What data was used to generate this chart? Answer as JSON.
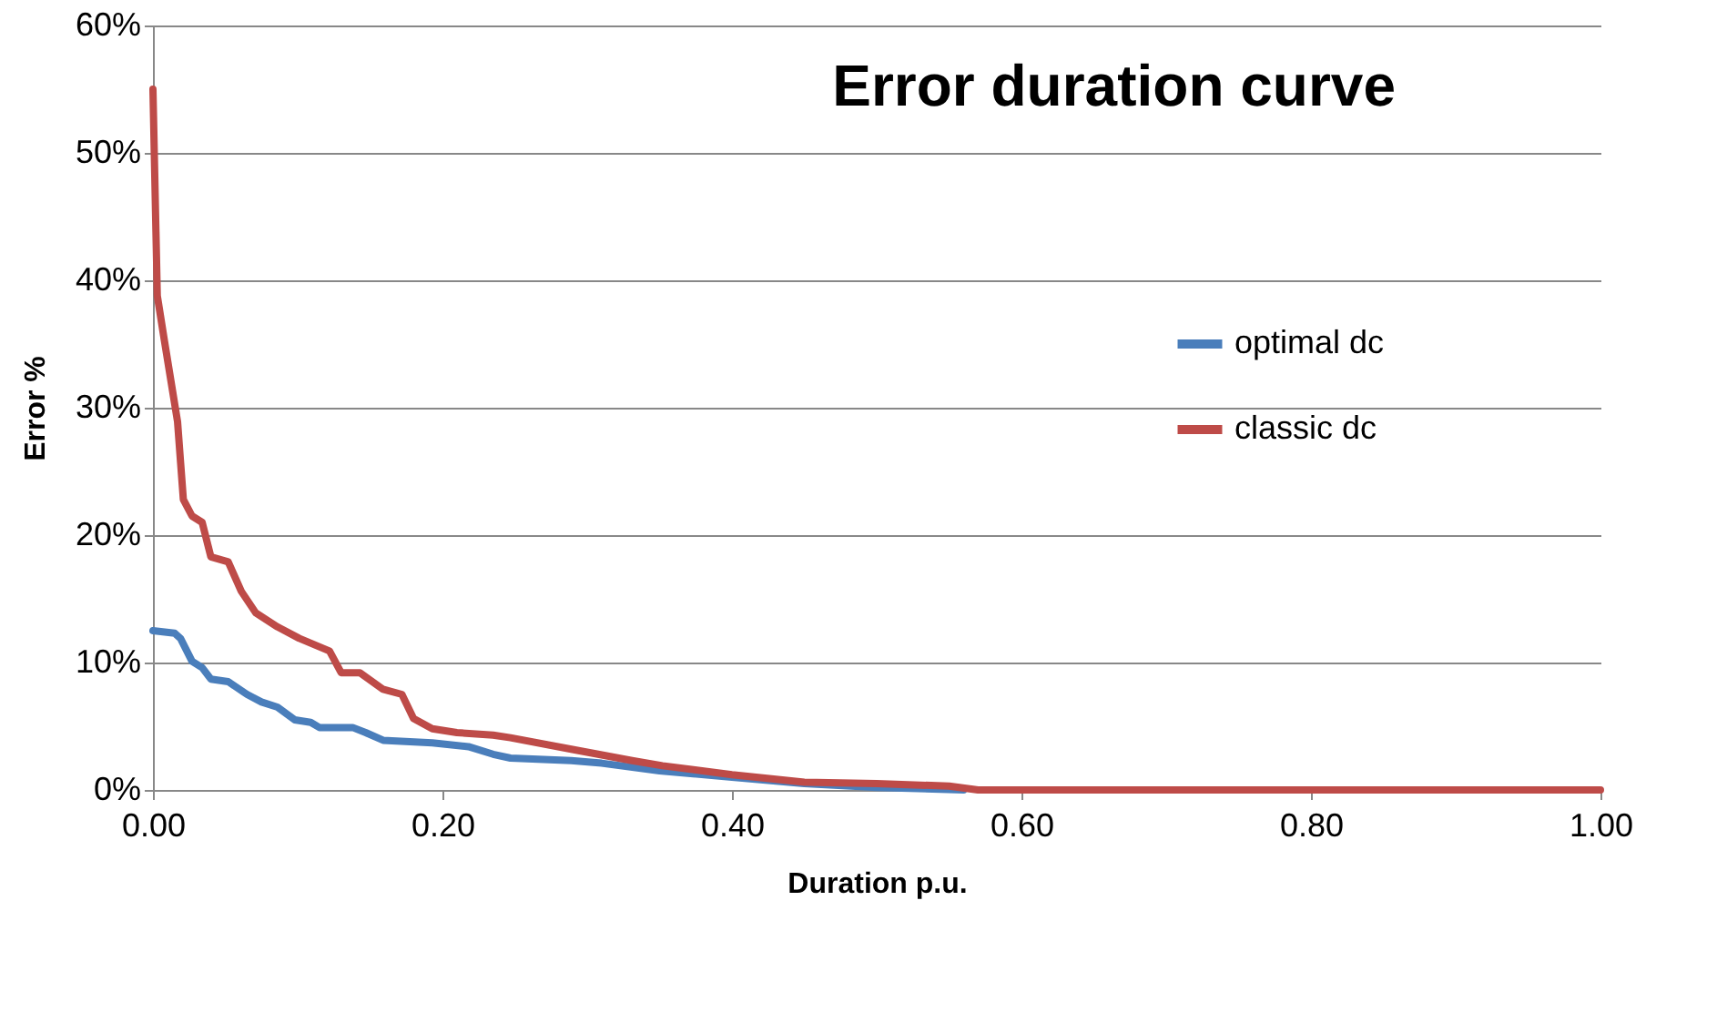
{
  "chart_data": {
    "type": "line",
    "title": "Error duration curve",
    "xlabel": "Duration p.u.",
    "ylabel": "Error %",
    "xlim": [
      0,
      1
    ],
    "xticks": [
      {
        "value": 0,
        "label": "0.00"
      },
      {
        "value": 0.2,
        "label": "0.20"
      },
      {
        "value": 0.4,
        "label": "0.40"
      },
      {
        "value": 0.6,
        "label": "0.60"
      },
      {
        "value": 0.8,
        "label": "0.80"
      },
      {
        "value": 1,
        "label": "1.00"
      }
    ],
    "ylim": [
      0,
      60
    ],
    "yticks": [
      {
        "value": 0,
        "label": "0%"
      },
      {
        "value": 10,
        "label": "10%"
      },
      {
        "value": 20,
        "label": "20%"
      },
      {
        "value": 30,
        "label": "30%"
      },
      {
        "value": 40,
        "label": "40%"
      },
      {
        "value": 50,
        "label": "50%"
      },
      {
        "value": 60,
        "label": "60%"
      }
    ],
    "grid": "y",
    "legend": "right",
    "line_style": "solid",
    "marker": "none",
    "series": [
      {
        "name": "optimal dc",
        "color": "#4a7ebb",
        "x": [
          0,
          0.015,
          0.019,
          0.027,
          0.034,
          0.04,
          0.052,
          0.065,
          0.075,
          0.086,
          0.098,
          0.109,
          0.115,
          0.138,
          0.147,
          0.159,
          0.193,
          0.218,
          0.235,
          0.247,
          0.289,
          0.31,
          0.35,
          0.4,
          0.45,
          0.5,
          0.56
        ],
        "values": [
          12.5,
          12.3,
          11.9,
          10.1,
          9.6,
          8.7,
          8.5,
          7.5,
          6.9,
          6.5,
          5.5,
          5.3,
          4.9,
          4.9,
          4.5,
          3.9,
          3.7,
          3.4,
          2.8,
          2.5,
          2.3,
          2.1,
          1.5,
          1.0,
          0.5,
          0.2,
          0
        ]
      },
      {
        "name": "classic dc",
        "color": "#be4b48",
        "x": [
          0,
          0.003,
          0.008,
          0.017,
          0.021,
          0.027,
          0.034,
          0.04,
          0.052,
          0.061,
          0.071,
          0.086,
          0.101,
          0.122,
          0.13,
          0.143,
          0.159,
          0.172,
          0.18,
          0.193,
          0.21,
          0.235,
          0.247,
          0.289,
          0.331,
          0.352,
          0.4,
          0.45,
          0.5,
          0.55,
          0.57,
          0.7,
          0.85,
          1
        ],
        "values": [
          55,
          38.8,
          35.2,
          28.9,
          22.8,
          21.5,
          21,
          18.3,
          17.9,
          15.6,
          13.9,
          12.8,
          11.9,
          10.9,
          9.2,
          9.2,
          7.9,
          7.5,
          5.6,
          4.8,
          4.5,
          4.3,
          4.1,
          3.2,
          2.3,
          1.9,
          1.2,
          0.6,
          0.5,
          0.3,
          0,
          0,
          0,
          0
        ]
      }
    ]
  }
}
